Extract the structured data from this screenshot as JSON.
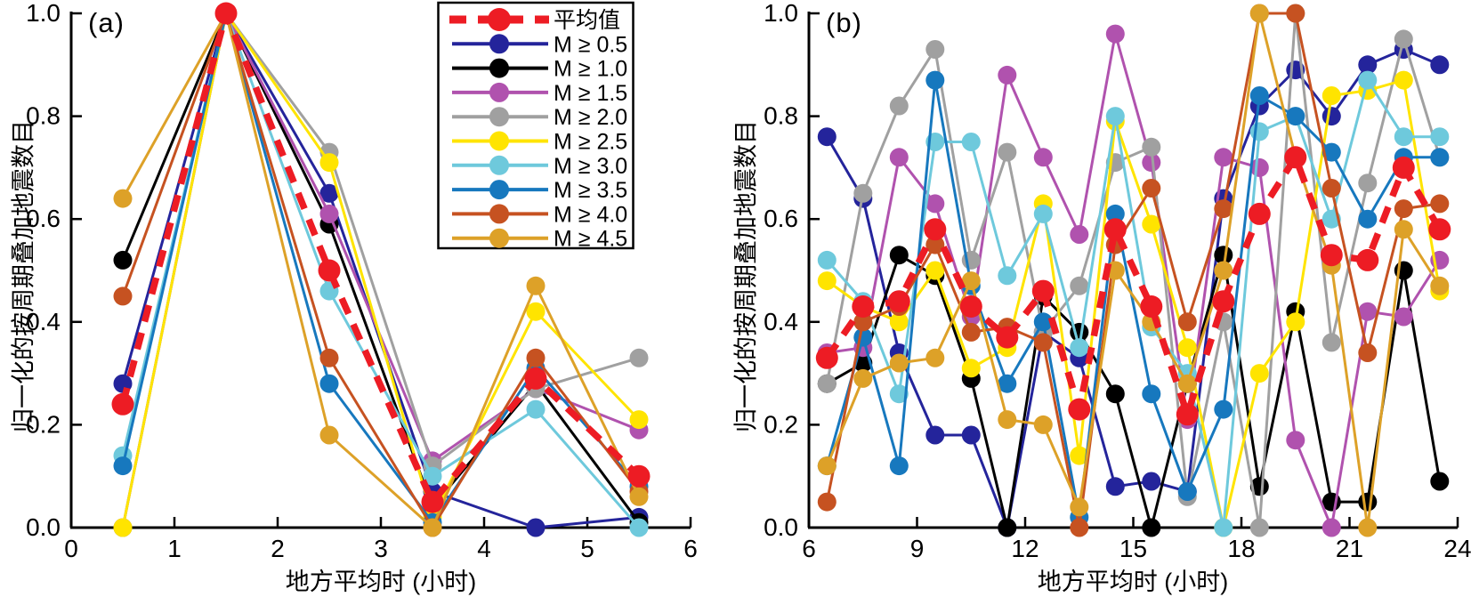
{
  "figure": {
    "background": "#ffffff",
    "axis_color": "#000000"
  },
  "legend": {
    "position": "top-center-left-panel",
    "border_color": "#000000",
    "entries": [
      {
        "name": "mean",
        "label": "平均值",
        "color": "#ED1C24",
        "style": "dashed"
      },
      {
        "name": "m-ge-0.5",
        "label": "M ≥ 0.5",
        "color": "#24249B",
        "style": "solid"
      },
      {
        "name": "m-ge-1.0",
        "label": "M ≥ 1.0",
        "color": "#000000",
        "style": "solid"
      },
      {
        "name": "m-ge-1.5",
        "label": "M ≥ 1.5",
        "color": "#B052AE",
        "style": "solid"
      },
      {
        "name": "m-ge-2.0",
        "label": "M ≥ 2.0",
        "color": "#A0A0A0",
        "style": "solid"
      },
      {
        "name": "m-ge-2.5",
        "label": "M ≥ 2.5",
        "color": "#FFE400",
        "style": "solid"
      },
      {
        "name": "m-ge-3.0",
        "label": "M ≥ 3.0",
        "color": "#6EC9DC",
        "style": "solid"
      },
      {
        "name": "m-ge-3.5",
        "label": "M ≥ 3.5",
        "color": "#1778BE",
        "style": "solid"
      },
      {
        "name": "m-ge-4.0",
        "label": "M ≥ 4.0",
        "color": "#C65221",
        "style": "solid"
      },
      {
        "name": "m-ge-4.5",
        "label": "M ≥ 4.5",
        "color": "#DDA128",
        "style": "solid"
      }
    ]
  },
  "chart_data": [
    {
      "type": "line",
      "panel_tag": "(a)",
      "xlabel": "地方平均时 (小时)",
      "ylabel": "归一化的按周期叠加地震数目",
      "xlim": [
        0,
        6
      ],
      "ylim": [
        0,
        1
      ],
      "x_ticks": [
        0,
        1,
        2,
        3,
        4,
        5,
        6
      ],
      "y_tick_labels": [
        "0.0",
        "0.2",
        "0.4",
        "0.6",
        "0.8",
        "1.0"
      ],
      "grid": false,
      "x": [
        0.5,
        1.5,
        2.5,
        3.5,
        4.5,
        5.5
      ],
      "series": [
        {
          "name": "mean",
          "values": [
            0.24,
            1.0,
            0.5,
            0.05,
            0.29,
            0.1
          ]
        },
        {
          "name": "m-ge-0.5",
          "values": [
            0.28,
            1.0,
            0.65,
            0.07,
            0.0,
            0.02
          ]
        },
        {
          "name": "m-ge-1.0",
          "values": [
            0.52,
            1.0,
            0.59,
            0.04,
            0.28,
            0.01
          ]
        },
        {
          "name": "m-ge-1.5",
          "values": [
            0.0,
            1.0,
            0.61,
            0.13,
            0.27,
            0.19
          ]
        },
        {
          "name": "m-ge-2.0",
          "values": [
            0.0,
            1.0,
            0.73,
            0.12,
            0.27,
            0.33
          ]
        },
        {
          "name": "m-ge-2.5",
          "values": [
            0.0,
            1.0,
            0.71,
            0.02,
            0.42,
            0.21
          ]
        },
        {
          "name": "m-ge-3.0",
          "values": [
            0.14,
            1.0,
            0.46,
            0.1,
            0.23,
            0.0
          ]
        },
        {
          "name": "m-ge-3.5",
          "values": [
            0.12,
            1.0,
            0.28,
            0.01,
            0.31,
            0.08
          ]
        },
        {
          "name": "m-ge-4.0",
          "values": [
            0.45,
            1.0,
            0.33,
            0.0,
            0.33,
            0.07
          ]
        },
        {
          "name": "m-ge-4.5",
          "values": [
            0.64,
            1.0,
            0.18,
            0.0,
            0.47,
            0.06
          ]
        }
      ]
    },
    {
      "type": "line",
      "panel_tag": "(b)",
      "xlabel": "地方平均时 (小时)",
      "ylabel": "归一化的按周期叠加地震数目",
      "xlim": [
        6,
        24
      ],
      "ylim": [
        0,
        1
      ],
      "x_ticks": [
        6,
        9,
        12,
        15,
        18,
        21,
        24
      ],
      "y_tick_labels": [
        "0.0",
        "0.2",
        "0.4",
        "0.6",
        "0.8",
        "1.0"
      ],
      "grid": false,
      "x": [
        6.5,
        7.5,
        8.5,
        9.5,
        10.5,
        11.5,
        12.5,
        13.5,
        14.5,
        15.5,
        16.5,
        17.5,
        18.5,
        19.5,
        20.5,
        21.5,
        22.5,
        23.5
      ],
      "series": [
        {
          "name": "mean",
          "values": [
            0.33,
            0.43,
            0.44,
            0.58,
            0.43,
            0.37,
            0.46,
            0.23,
            0.58,
            0.43,
            0.22,
            0.44,
            0.61,
            0.72,
            0.53,
            0.52,
            0.7,
            0.58
          ]
        },
        {
          "name": "m-ge-0.5",
          "values": [
            0.76,
            0.64,
            0.34,
            0.18,
            0.18,
            0.0,
            0.38,
            0.33,
            0.08,
            0.09,
            0.07,
            0.64,
            0.82,
            0.89,
            0.8,
            0.9,
            0.93,
            0.9
          ]
        },
        {
          "name": "m-ge-1.0",
          "values": [
            0.28,
            0.32,
            0.53,
            0.49,
            0.29,
            0.0,
            0.45,
            0.38,
            0.26,
            0.0,
            0.28,
            0.53,
            0.08,
            0.42,
            0.05,
            0.05,
            0.5,
            0.09
          ]
        },
        {
          "name": "m-ge-1.5",
          "values": [
            0.34,
            0.35,
            0.72,
            0.63,
            0.41,
            0.88,
            0.72,
            0.57,
            0.96,
            0.71,
            0.21,
            0.72,
            0.7,
            0.17,
            0.0,
            0.42,
            0.41,
            0.52
          ]
        },
        {
          "name": "m-ge-2.0",
          "values": [
            0.28,
            0.65,
            0.82,
            0.93,
            0.52,
            0.73,
            0.38,
            0.47,
            0.71,
            0.74,
            0.06,
            0.4,
            0.0,
            1.0,
            0.36,
            0.67,
            0.95,
            0.72
          ]
        },
        {
          "name": "m-ge-2.5",
          "values": [
            0.48,
            0.43,
            0.4,
            0.5,
            0.31,
            0.35,
            0.63,
            0.14,
            0.79,
            0.59,
            0.35,
            0.0,
            0.3,
            0.4,
            0.84,
            0.85,
            0.87,
            0.46
          ]
        },
        {
          "name": "m-ge-3.0",
          "values": [
            0.52,
            0.44,
            0.26,
            0.75,
            0.75,
            0.49,
            0.61,
            0.35,
            0.8,
            0.39,
            0.3,
            0.0,
            0.77,
            0.8,
            0.6,
            0.87,
            0.76,
            0.76
          ]
        },
        {
          "name": "m-ge-3.5",
          "values": [
            0.12,
            0.37,
            0.12,
            0.87,
            0.47,
            0.28,
            0.4,
            0.02,
            0.61,
            0.26,
            0.07,
            0.23,
            0.84,
            0.8,
            0.73,
            0.6,
            0.72,
            0.72
          ]
        },
        {
          "name": "m-ge-4.0",
          "values": [
            0.05,
            0.4,
            0.43,
            0.55,
            0.38,
            0.39,
            0.36,
            0.0,
            0.55,
            0.66,
            0.4,
            0.62,
            1.0,
            1.0,
            0.66,
            0.34,
            0.62,
            0.63
          ]
        },
        {
          "name": "m-ge-4.5",
          "values": [
            0.12,
            0.29,
            0.32,
            0.33,
            0.48,
            0.21,
            0.2,
            0.04,
            0.5,
            0.4,
            0.28,
            0.5,
            1.0,
            0.72,
            0.51,
            0.0,
            0.58,
            0.47
          ]
        }
      ]
    }
  ]
}
